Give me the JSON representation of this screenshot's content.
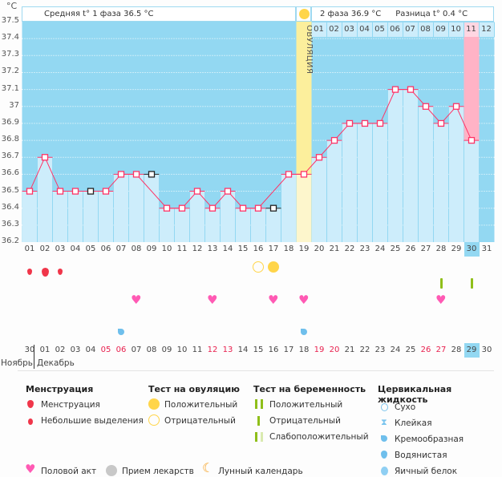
{
  "unit_label": "°C",
  "header": {
    "phase1": "Средняя t° 1 фаза 36.5 °C",
    "phase2": "2 фаза 36.9 °C",
    "difference": "Разница t° 0.4 °C",
    "ovulation_label": "ОВУЛЯЦИЯ"
  },
  "colors": {
    "bg_dark": "#93d8f2",
    "bar": "#cdedfb",
    "ovulation": "#fcef9c",
    "highlight": "#ffb3c6",
    "line": "#ff3366",
    "sun": "#ffd54a"
  },
  "chart_data": {
    "type": "line",
    "ylim": [
      36.2,
      37.5
    ],
    "y_ticks": [
      "37.5",
      "37.4",
      "37.3",
      "37.2",
      "37.1",
      "37",
      "36.9",
      "36.8",
      "36.7",
      "36.6",
      "36.5",
      "36.4",
      "36.3",
      "36.2"
    ],
    "x": [
      "01",
      "02",
      "03",
      "04",
      "05",
      "06",
      "07",
      "08",
      "09",
      "10",
      "11",
      "12",
      "13",
      "14",
      "15",
      "16",
      "17",
      "18",
      "19",
      "20",
      "21",
      "22",
      "23",
      "24",
      "25",
      "26",
      "27",
      "28",
      "29",
      "30",
      "31"
    ],
    "values": [
      36.5,
      36.7,
      36.5,
      36.5,
      36.5,
      36.5,
      36.6,
      36.6,
      36.6,
      36.4,
      36.4,
      36.5,
      36.4,
      36.5,
      36.4,
      36.4,
      36.4,
      36.6,
      36.6,
      36.7,
      36.8,
      36.9,
      36.9,
      36.9,
      37.1,
      37.1,
      37.0,
      36.9,
      37.0,
      36.8,
      null
    ],
    "excluded_days": [
      "05",
      "09",
      "17"
    ],
    "ovulation_day": "19",
    "current_day": "30",
    "phase2_days": [
      "01",
      "02",
      "03",
      "04",
      "05",
      "06",
      "07",
      "08",
      "09",
      "10",
      "11",
      "12"
    ],
    "phase2_highlight": "11"
  },
  "calendar_dates": [
    "30",
    "01",
    "02",
    "03",
    "04",
    "05",
    "06",
    "07",
    "08",
    "09",
    "10",
    "11",
    "12",
    "13",
    "14",
    "15",
    "16",
    "17",
    "18",
    "19",
    "20",
    "21",
    "22",
    "23",
    "24",
    "25",
    "26",
    "27",
    "28",
    "29",
    "30"
  ],
  "weekend_dates_idx": [
    5,
    6,
    12,
    13,
    19,
    20,
    26,
    27
  ],
  "today_idx": 29,
  "months": {
    "prev": "Ноябрь",
    "current": "Декабрь"
  },
  "events": {
    "menstruation": [
      {
        "day": 1,
        "size": "small"
      },
      {
        "day": 2,
        "size": "large"
      },
      {
        "day": 3,
        "size": "small"
      }
    ],
    "ovulation_test": [
      {
        "day": 16,
        "result": "negative"
      },
      {
        "day": 17,
        "result": "positive"
      }
    ],
    "pregnancy_test": [
      {
        "day": 28,
        "result": "negative"
      },
      {
        "day": 30,
        "result": "negative"
      }
    ],
    "intercourse": [
      8,
      13,
      17,
      19,
      28
    ],
    "cervical_fluid": [
      {
        "day": 7,
        "type": "creamy"
      },
      {
        "day": 19,
        "type": "creamy"
      }
    ]
  },
  "legend": {
    "menstruation": {
      "title": "Менструация",
      "items": [
        "Менструация",
        "Небольшие выделения"
      ]
    },
    "ovulation_test": {
      "title": "Тест на овуляцию",
      "items": [
        "Положительный",
        "Отрицательный"
      ]
    },
    "pregnancy_test": {
      "title": "Тест на беременность",
      "items": [
        "Положительный",
        "Отрицательный",
        "Слабоположительный"
      ]
    },
    "cervical_fluid": {
      "title": "Цервикальная жидкость",
      "items": [
        "Сухо",
        "Клейкая",
        "Кремообразная",
        "Водянистая",
        "Яичный белок"
      ]
    },
    "other": [
      "Половой акт",
      "Прием лекарств",
      "Лунный календарь"
    ]
  }
}
